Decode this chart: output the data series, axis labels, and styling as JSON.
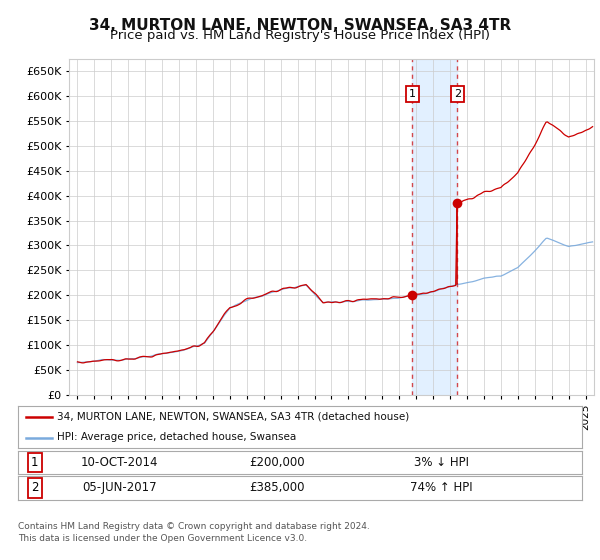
{
  "title": "34, MURTON LANE, NEWTON, SWANSEA, SA3 4TR",
  "subtitle": "Price paid vs. HM Land Registry's House Price Index (HPI)",
  "legend_line1": "34, MURTON LANE, NEWTON, SWANSEA, SA3 4TR (detached house)",
  "legend_line2": "HPI: Average price, detached house, Swansea",
  "table_row1": [
    "1",
    "10-OCT-2014",
    "£200,000",
    "3% ↓ HPI"
  ],
  "table_row2": [
    "2",
    "05-JUN-2017",
    "£385,000",
    "74% ↑ HPI"
  ],
  "footnote": "Contains HM Land Registry data © Crown copyright and database right 2024.\nThis data is licensed under the Open Government Licence v3.0.",
  "sale1_date_x": 2014.77,
  "sale1_price": 200000,
  "sale2_date_x": 2017.43,
  "sale2_price": 385000,
  "ylim": [
    0,
    675000
  ],
  "xlim_start": 1994.5,
  "xlim_end": 2025.5,
  "red_color": "#cc0000",
  "blue_color": "#7aaadd",
  "background_color": "#ffffff",
  "grid_color": "#cccccc",
  "shade_color": "#ddeeff",
  "title_fontsize": 11,
  "subtitle_fontsize": 9.5
}
